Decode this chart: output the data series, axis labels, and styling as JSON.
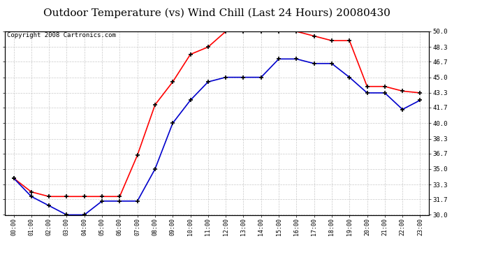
{
  "title": "Outdoor Temperature (vs) Wind Chill (Last 24 Hours) 20080430",
  "copyright_text": "Copyright 2008 Cartronics.com",
  "x_labels": [
    "00:00",
    "01:00",
    "02:00",
    "03:00",
    "04:00",
    "05:00",
    "06:00",
    "07:00",
    "08:00",
    "09:00",
    "10:00",
    "11:00",
    "12:00",
    "13:00",
    "14:00",
    "15:00",
    "16:00",
    "17:00",
    "18:00",
    "19:00",
    "20:00",
    "21:00",
    "22:00",
    "23:00"
  ],
  "temp_red": [
    34.0,
    32.5,
    32.0,
    32.0,
    32.0,
    32.0,
    32.0,
    36.5,
    42.0,
    44.5,
    47.5,
    48.3,
    50.0,
    50.0,
    50.0,
    50.0,
    50.0,
    49.5,
    49.0,
    49.0,
    44.0,
    44.0,
    43.5,
    43.3
  ],
  "wind_chill_blue": [
    34.0,
    32.0,
    31.0,
    30.0,
    30.0,
    31.5,
    31.5,
    31.5,
    35.0,
    40.0,
    42.5,
    44.5,
    45.0,
    45.0,
    45.0,
    47.0,
    47.0,
    46.5,
    46.5,
    45.0,
    43.3,
    43.3,
    41.5,
    42.5
  ],
  "ylim_min": 30.0,
  "ylim_max": 50.0,
  "y_ticks": [
    30.0,
    31.7,
    33.3,
    35.0,
    36.7,
    38.3,
    40.0,
    41.7,
    43.3,
    45.0,
    46.7,
    48.3,
    50.0
  ],
  "red_color": "#ff0000",
  "blue_color": "#0000cc",
  "bg_color": "#ffffff",
  "grid_color": "#bbbbbb",
  "title_fontsize": 11,
  "copyright_fontsize": 6.5
}
